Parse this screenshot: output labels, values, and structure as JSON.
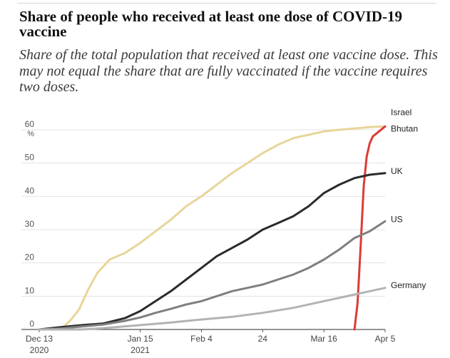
{
  "title": "Share of people who received at least one dose of COVID-19 vaccine",
  "subtitle": "Share of the total population that received at least one vaccine dose. This may not equal the share that are fully vaccinated if the vaccine requires two doses.",
  "chart_data": {
    "type": "line",
    "title": "Share of people who received at least one dose of COVID-19 vaccine",
    "ylabel": "%",
    "xlabel": "",
    "x_domain": [
      "2020-12-13",
      "2021-04-05"
    ],
    "ylim": [
      0,
      60
    ],
    "yticks": [
      0,
      10,
      20,
      30,
      40,
      50,
      60
    ],
    "ytick_labels": [
      "0",
      "10",
      "20",
      "30",
      "40",
      "50",
      "60"
    ],
    "y_unit_label": "%",
    "xticks": [
      {
        "date": "2020-12-13",
        "label": "Dec 13",
        "sublabel": "2020"
      },
      {
        "date": "2021-01-15",
        "label": "Jan 15",
        "sublabel": "2021"
      },
      {
        "date": "2021-02-04",
        "label": "Feb 4",
        "sublabel": ""
      },
      {
        "date": "2021-02-24",
        "label": "24",
        "sublabel": ""
      },
      {
        "date": "2021-03-16",
        "label": "Mar 16",
        "sublabel": ""
      },
      {
        "date": "2021-04-05",
        "label": "Apr 5",
        "sublabel": ""
      }
    ],
    "grid": true,
    "series": [
      {
        "name": "Israel",
        "label": "Israel",
        "color": "#e8d59a",
        "points": [
          [
            "2020-12-13",
            0
          ],
          [
            "2020-12-20",
            0.1
          ],
          [
            "2020-12-23",
            2.5
          ],
          [
            "2020-12-26",
            6
          ],
          [
            "2020-12-29",
            12
          ],
          [
            "2021-01-01",
            17
          ],
          [
            "2021-01-05",
            21
          ],
          [
            "2021-01-10",
            23
          ],
          [
            "2021-01-15",
            26
          ],
          [
            "2021-01-20",
            29.5
          ],
          [
            "2021-01-25",
            33
          ],
          [
            "2021-01-30",
            37
          ],
          [
            "2021-02-04",
            40
          ],
          [
            "2021-02-09",
            43.5
          ],
          [
            "2021-02-14",
            47
          ],
          [
            "2021-02-19",
            50
          ],
          [
            "2021-02-24",
            53
          ],
          [
            "2021-03-01",
            55.5
          ],
          [
            "2021-03-06",
            57.5
          ],
          [
            "2021-03-11",
            58.5
          ],
          [
            "2021-03-16",
            59.5
          ],
          [
            "2021-03-21",
            60
          ],
          [
            "2021-03-26",
            60.4
          ],
          [
            "2021-03-31",
            60.8
          ],
          [
            "2021-04-05",
            61
          ]
        ]
      },
      {
        "name": "Bhutan",
        "label": "Bhutan",
        "color": "#dc3b35",
        "points": [
          [
            "2021-03-26",
            0
          ],
          [
            "2021-03-27",
            8
          ],
          [
            "2021-03-28",
            25
          ],
          [
            "2021-03-29",
            43
          ],
          [
            "2021-03-30",
            52
          ],
          [
            "2021-03-31",
            56
          ],
          [
            "2021-04-01",
            58
          ],
          [
            "2021-04-03",
            59.5
          ],
          [
            "2021-04-05",
            61
          ]
        ]
      },
      {
        "name": "UK",
        "label": "UK",
        "color": "#2b2b2b",
        "points": [
          [
            "2020-12-13",
            0
          ],
          [
            "2020-12-20",
            0.7
          ],
          [
            "2020-12-27",
            1.3
          ],
          [
            "2021-01-03",
            1.8
          ],
          [
            "2021-01-10",
            3.4
          ],
          [
            "2021-01-15",
            5.5
          ],
          [
            "2021-01-20",
            8.5
          ],
          [
            "2021-01-25",
            11.5
          ],
          [
            "2021-01-30",
            15
          ],
          [
            "2021-02-04",
            18.5
          ],
          [
            "2021-02-09",
            22
          ],
          [
            "2021-02-14",
            24.5
          ],
          [
            "2021-02-19",
            27
          ],
          [
            "2021-02-24",
            30
          ],
          [
            "2021-03-01",
            32
          ],
          [
            "2021-03-06",
            34
          ],
          [
            "2021-03-11",
            37
          ],
          [
            "2021-03-16",
            41
          ],
          [
            "2021-03-21",
            43.5
          ],
          [
            "2021-03-26",
            45.5
          ],
          [
            "2021-03-31",
            46.5
          ],
          [
            "2021-04-05",
            47
          ]
        ]
      },
      {
        "name": "US",
        "label": "US",
        "color": "#7f7f7f",
        "points": [
          [
            "2020-12-13",
            0
          ],
          [
            "2020-12-20",
            0.3
          ],
          [
            "2020-12-27",
            0.9
          ],
          [
            "2021-01-03",
            1.5
          ],
          [
            "2021-01-10",
            2.6
          ],
          [
            "2021-01-15",
            3.6
          ],
          [
            "2021-01-20",
            5
          ],
          [
            "2021-01-25",
            6.2
          ],
          [
            "2021-01-30",
            7.5
          ],
          [
            "2021-02-04",
            8.5
          ],
          [
            "2021-02-09",
            10
          ],
          [
            "2021-02-14",
            11.5
          ],
          [
            "2021-02-19",
            12.5
          ],
          [
            "2021-02-24",
            13.5
          ],
          [
            "2021-03-01",
            15
          ],
          [
            "2021-03-06",
            16.5
          ],
          [
            "2021-03-11",
            18.5
          ],
          [
            "2021-03-16",
            21
          ],
          [
            "2021-03-21",
            24
          ],
          [
            "2021-03-26",
            27.5
          ],
          [
            "2021-03-31",
            29.5
          ],
          [
            "2021-04-05",
            32.5
          ]
        ]
      },
      {
        "name": "Germany",
        "label": "Germany",
        "color": "#b3b3b3",
        "points": [
          [
            "2020-12-13",
            0
          ],
          [
            "2020-12-27",
            0
          ],
          [
            "2021-01-03",
            0.4
          ],
          [
            "2021-01-15",
            1.3
          ],
          [
            "2021-01-25",
            2.1
          ],
          [
            "2021-02-04",
            3
          ],
          [
            "2021-02-14",
            3.8
          ],
          [
            "2021-02-24",
            5
          ],
          [
            "2021-03-06",
            6.5
          ],
          [
            "2021-03-16",
            8.5
          ],
          [
            "2021-03-26",
            10.5
          ],
          [
            "2021-04-05",
            12.5
          ]
        ]
      }
    ]
  }
}
